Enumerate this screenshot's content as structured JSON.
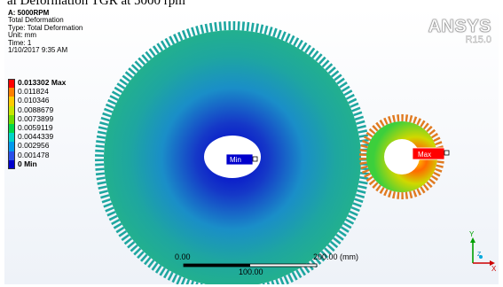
{
  "caption": "al Deformation TGR at 5000 rpm",
  "info": {
    "title": "A: 5000RPM",
    "result": "Total Deformation",
    "type": "Type: Total Deformation",
    "unit": "Unit: mm",
    "time": "Time: 1",
    "timestamp": "1/10/2017 9:35 AM"
  },
  "legend": [
    {
      "label": "0.013302 Max",
      "color": "#ff0000",
      "bold": true
    },
    {
      "label": "0.011824",
      "color": "#ff7f00",
      "bold": false
    },
    {
      "label": "0.010346",
      "color": "#ffcc00",
      "bold": false
    },
    {
      "label": "0.0088679",
      "color": "#c8e600",
      "bold": false
    },
    {
      "label": "0.0073899",
      "color": "#6fdc00",
      "bold": false
    },
    {
      "label": "0.0059119",
      "color": "#00d94a",
      "bold": false
    },
    {
      "label": "0.0044339",
      "color": "#00d5c8",
      "bold": false
    },
    {
      "label": "0.002956",
      "color": "#0099ee",
      "bold": false
    },
    {
      "label": "0.001478",
      "color": "#2a4fea",
      "bold": false
    },
    {
      "label": "0 Min",
      "color": "#0000cc",
      "bold": true
    }
  ],
  "logo": {
    "name": "ANSYS",
    "release": "R15.0"
  },
  "markers": {
    "min": "Min",
    "max": "Max"
  },
  "scale": {
    "start": "0.00",
    "end": "200.00 (mm)",
    "mid": "100.00"
  },
  "triad": {
    "y": "Y",
    "z": "Z",
    "x": "X"
  },
  "colors": {
    "min": "#0000cc",
    "max": "#ff0000",
    "gear": "#1ea6a0"
  }
}
